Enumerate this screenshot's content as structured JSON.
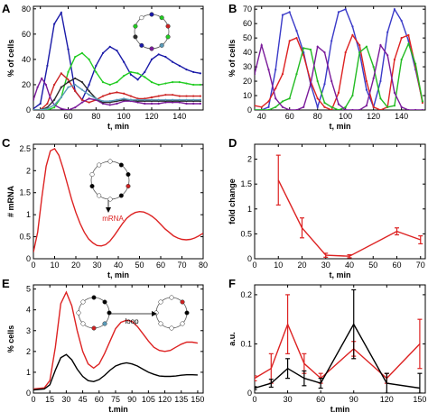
{
  "chart_data": [
    {
      "panel": "A",
      "type": "line",
      "xlabel": "t, min",
      "ylabel": "% of cells",
      "xlim": [
        35,
        157
      ],
      "ylim": [
        0,
        82
      ],
      "xticks": [
        40,
        60,
        80,
        100,
        120,
        140
      ],
      "yticks": [
        0,
        20,
        40,
        60,
        80
      ],
      "series": [
        {
          "color": "#1a1aa8",
          "x": [
            35,
            40,
            45,
            50,
            55,
            60,
            65,
            70,
            75,
            80,
            85,
            90,
            95,
            100,
            105,
            110,
            115,
            120,
            125,
            130,
            135,
            140,
            145,
            150,
            155
          ],
          "y": [
            1,
            5,
            35,
            68,
            77,
            48,
            15,
            8,
            20,
            35,
            45,
            50,
            47,
            38,
            28,
            24,
            30,
            40,
            44,
            42,
            38,
            35,
            32,
            30,
            29
          ]
        },
        {
          "color": "#22cc22",
          "x": [
            35,
            40,
            45,
            50,
            55,
            60,
            65,
            70,
            75,
            80,
            85,
            90,
            95,
            100,
            105,
            110,
            115,
            120,
            125,
            130,
            135,
            140,
            145,
            150,
            155
          ],
          "y": [
            0,
            0,
            0,
            2,
            10,
            30,
            42,
            45,
            40,
            30,
            22,
            20,
            22,
            27,
            30,
            29,
            26,
            22,
            20,
            21,
            22,
            22,
            21,
            20,
            20
          ]
        },
        {
          "color": "#cc2222",
          "x": [
            35,
            40,
            45,
            50,
            55,
            60,
            65,
            70,
            75,
            80,
            85,
            90,
            95,
            100,
            105,
            110,
            115,
            120,
            125,
            130,
            135,
            140,
            145,
            150,
            155
          ],
          "y": [
            0,
            0,
            5,
            20,
            29,
            24,
            15,
            8,
            6,
            8,
            11,
            13,
            14,
            13,
            11,
            9,
            9,
            10,
            11,
            12,
            12,
            11,
            11,
            11,
            11
          ]
        },
        {
          "color": "#7a1a9a",
          "x": [
            35,
            38,
            41,
            44,
            47,
            50,
            55,
            60,
            65,
            70,
            75,
            80,
            85,
            90,
            95,
            100,
            105,
            110,
            115,
            120,
            125,
            130,
            135,
            140,
            145,
            150,
            155
          ],
          "y": [
            8,
            18,
            25,
            20,
            10,
            4,
            1,
            0,
            2,
            6,
            9,
            8,
            5,
            4,
            5,
            7,
            7,
            6,
            5,
            5,
            5,
            6,
            6,
            6,
            5,
            5,
            5
          ]
        },
        {
          "color": "#2b2b2b",
          "x": [
            35,
            40,
            45,
            50,
            55,
            60,
            65,
            70,
            75,
            80,
            85,
            90,
            95,
            100,
            105,
            110,
            115,
            120,
            125,
            130,
            135,
            140,
            145,
            150,
            155
          ],
          "y": [
            0,
            0,
            2,
            8,
            18,
            22,
            25,
            22,
            15,
            9,
            6,
            6,
            7,
            8,
            8,
            7,
            7,
            7,
            7,
            7,
            7,
            7,
            7,
            7,
            7
          ]
        },
        {
          "color": "#5a9ab8",
          "x": [
            35,
            40,
            45,
            50,
            55,
            60,
            65,
            70,
            75,
            80,
            85,
            90,
            95,
            100,
            105,
            110,
            115,
            120,
            125,
            130,
            135,
            140,
            145,
            150,
            155
          ],
          "y": [
            0,
            0,
            1,
            4,
            10,
            18,
            20,
            16,
            12,
            9,
            7,
            7,
            8,
            9,
            8,
            8,
            8,
            8,
            8,
            8,
            8,
            8,
            8,
            8,
            8
          ]
        }
      ]
    },
    {
      "panel": "B",
      "type": "line",
      "xlabel": "t, min",
      "ylabel": "% of cells",
      "xlim": [
        35,
        157
      ],
      "ylim": [
        0,
        72
      ],
      "xticks": [
        40,
        60,
        80,
        100,
        120,
        140
      ],
      "yticks": [
        0,
        10,
        20,
        30,
        40,
        50,
        60,
        70
      ],
      "series": [
        {
          "color": "#3a3ac8",
          "x": [
            35,
            40,
            45,
            50,
            55,
            60,
            65,
            70,
            75,
            80,
            85,
            90,
            95,
            100,
            105,
            110,
            115,
            120,
            125,
            130,
            135,
            140,
            145,
            150,
            155
          ],
          "y": [
            0,
            0,
            2,
            28,
            66,
            68,
            55,
            40,
            18,
            2,
            18,
            48,
            68,
            70,
            58,
            40,
            14,
            2,
            20,
            54,
            70,
            62,
            48,
            28,
            6
          ]
        },
        {
          "color": "#dd2222",
          "x": [
            35,
            40,
            45,
            50,
            55,
            60,
            65,
            70,
            75,
            80,
            85,
            90,
            95,
            100,
            105,
            110,
            115,
            120,
            125,
            130,
            135,
            140,
            145,
            150,
            155
          ],
          "y": [
            3,
            2,
            6,
            15,
            25,
            48,
            50,
            38,
            20,
            8,
            2,
            0,
            12,
            40,
            52,
            45,
            20,
            2,
            0,
            2,
            35,
            50,
            52,
            30,
            5
          ]
        },
        {
          "color": "#22bb22",
          "x": [
            35,
            40,
            45,
            50,
            55,
            60,
            65,
            70,
            75,
            80,
            85,
            90,
            95,
            100,
            105,
            110,
            115,
            120,
            125,
            130,
            135,
            140,
            145,
            150,
            155
          ],
          "y": [
            0,
            0,
            0,
            2,
            6,
            8,
            25,
            43,
            42,
            20,
            5,
            2,
            0,
            2,
            10,
            40,
            44,
            30,
            8,
            2,
            3,
            35,
            46,
            32,
            6
          ]
        },
        {
          "color": "#7a1a9a",
          "x": [
            35,
            40,
            45,
            50,
            55,
            60,
            65,
            70,
            75,
            80,
            85,
            90,
            95,
            100,
            105,
            110,
            115,
            120,
            125,
            130,
            135,
            140,
            145,
            150,
            155
          ],
          "y": [
            25,
            45,
            28,
            8,
            2,
            0,
            0,
            2,
            18,
            44,
            40,
            20,
            4,
            0,
            0,
            0,
            3,
            22,
            45,
            38,
            12,
            2,
            0,
            0,
            0
          ]
        }
      ]
    },
    {
      "panel": "C",
      "type": "line",
      "xlabel": "t, min",
      "ylabel": "# mRNA",
      "xlim": [
        0,
        80
      ],
      "ylim": [
        0,
        2.6
      ],
      "xticks": [
        0,
        10,
        20,
        30,
        40,
        50,
        60,
        70,
        80
      ],
      "yticks": [
        0,
        0.5,
        1.0,
        1.5,
        2.0,
        2.5
      ],
      "annotation": "mRNA",
      "series": [
        {
          "color": "#dd2222",
          "x": [
            0,
            2,
            4,
            6,
            8,
            10,
            12,
            14,
            16,
            18,
            20,
            22,
            24,
            26,
            28,
            30,
            32,
            34,
            36,
            38,
            40,
            42,
            44,
            46,
            48,
            50,
            52,
            54,
            56,
            58,
            60,
            62,
            64,
            66,
            68,
            70,
            72,
            74,
            76,
            78,
            80
          ],
          "y": [
            0.15,
            0.6,
            1.4,
            2.1,
            2.45,
            2.5,
            2.35,
            2.05,
            1.7,
            1.35,
            1.05,
            0.8,
            0.6,
            0.45,
            0.36,
            0.3,
            0.29,
            0.32,
            0.4,
            0.52,
            0.66,
            0.8,
            0.92,
            1.0,
            1.05,
            1.07,
            1.06,
            1.02,
            0.96,
            0.88,
            0.78,
            0.68,
            0.6,
            0.52,
            0.47,
            0.44,
            0.43,
            0.44,
            0.47,
            0.52,
            0.58
          ]
        }
      ]
    },
    {
      "panel": "D",
      "type": "line",
      "xlabel": "t, min",
      "ylabel": "fold change",
      "xlim": [
        0,
        72
      ],
      "ylim": [
        0,
        2.3
      ],
      "xticks": [
        0,
        10,
        20,
        30,
        40,
        50,
        60,
        70
      ],
      "yticks": [
        0.0,
        0.5,
        1.0,
        1.5,
        2.0
      ],
      "series": [
        {
          "color": "#dd2222",
          "x": [
            10,
            20,
            30,
            40,
            60,
            70
          ],
          "y": [
            1.58,
            0.62,
            0.07,
            0.05,
            0.55,
            0.38
          ],
          "err": [
            0.5,
            0.2,
            0.04,
            0.03,
            0.07,
            0.08
          ]
        }
      ]
    },
    {
      "panel": "E",
      "type": "line",
      "xlabel": "t.min",
      "ylabel": "% cells",
      "xlim": [
        0,
        155
      ],
      "ylim": [
        0,
        5.2
      ],
      "xticks": [
        0,
        15,
        30,
        45,
        60,
        75,
        90,
        105,
        120,
        135,
        150
      ],
      "yticks": [
        0,
        1,
        2,
        3,
        4,
        5
      ],
      "annotation": "loop",
      "series": [
        {
          "color": "#dd2222",
          "x": [
            0,
            10,
            15,
            20,
            25,
            30,
            35,
            40,
            45,
            50,
            55,
            60,
            65,
            70,
            75,
            80,
            85,
            90,
            95,
            100,
            105,
            110,
            115,
            120,
            125,
            130,
            135,
            140,
            145,
            150
          ],
          "y": [
            0.2,
            0.25,
            0.6,
            2.2,
            4.3,
            4.85,
            4.2,
            3.0,
            2.0,
            1.4,
            1.2,
            1.4,
            1.9,
            2.5,
            3.1,
            3.4,
            3.5,
            3.45,
            3.2,
            2.85,
            2.5,
            2.2,
            2.05,
            2.0,
            2.05,
            2.2,
            2.35,
            2.45,
            2.45,
            2.4
          ]
        },
        {
          "color": "#000000",
          "x": [
            0,
            10,
            15,
            20,
            25,
            30,
            35,
            40,
            45,
            50,
            55,
            60,
            65,
            70,
            75,
            80,
            85,
            90,
            95,
            100,
            105,
            110,
            115,
            120,
            125,
            130,
            135,
            140,
            145,
            150
          ],
          "y": [
            0.15,
            0.2,
            0.4,
            1.1,
            1.7,
            1.85,
            1.6,
            1.15,
            0.8,
            0.6,
            0.55,
            0.65,
            0.85,
            1.1,
            1.3,
            1.4,
            1.45,
            1.4,
            1.3,
            1.15,
            1.0,
            0.9,
            0.82,
            0.8,
            0.8,
            0.82,
            0.86,
            0.88,
            0.88,
            0.87
          ]
        }
      ]
    },
    {
      "panel": "F",
      "type": "line",
      "xlabel": "t.min",
      "ylabel": "a.u.",
      "xlim": [
        0,
        155
      ],
      "ylim": [
        0,
        0.22
      ],
      "xticks": [
        0,
        30,
        60,
        90,
        120,
        150
      ],
      "yticks": [
        0,
        0.1,
        0.2
      ],
      "series": [
        {
          "color": "#dd2222",
          "x": [
            0,
            15,
            30,
            45,
            60,
            90,
            120,
            150
          ],
          "y": [
            0.03,
            0.05,
            0.14,
            0.06,
            0.03,
            0.09,
            0.03,
            0.1
          ],
          "err": [
            0.005,
            0.03,
            0.06,
            0.02,
            0.01,
            0.015,
            0.01,
            0.05
          ]
        },
        {
          "color": "#000000",
          "x": [
            0,
            15,
            30,
            45,
            60,
            90,
            120,
            150
          ],
          "y": [
            0.01,
            0.02,
            0.05,
            0.03,
            0.02,
            0.14,
            0.02,
            0.01
          ],
          "err": [
            0.003,
            0.008,
            0.02,
            0.015,
            0.01,
            0.07,
            0.02,
            0.03
          ]
        }
      ]
    }
  ],
  "panel_tags": [
    "A",
    "B",
    "C",
    "D",
    "E",
    "F"
  ]
}
